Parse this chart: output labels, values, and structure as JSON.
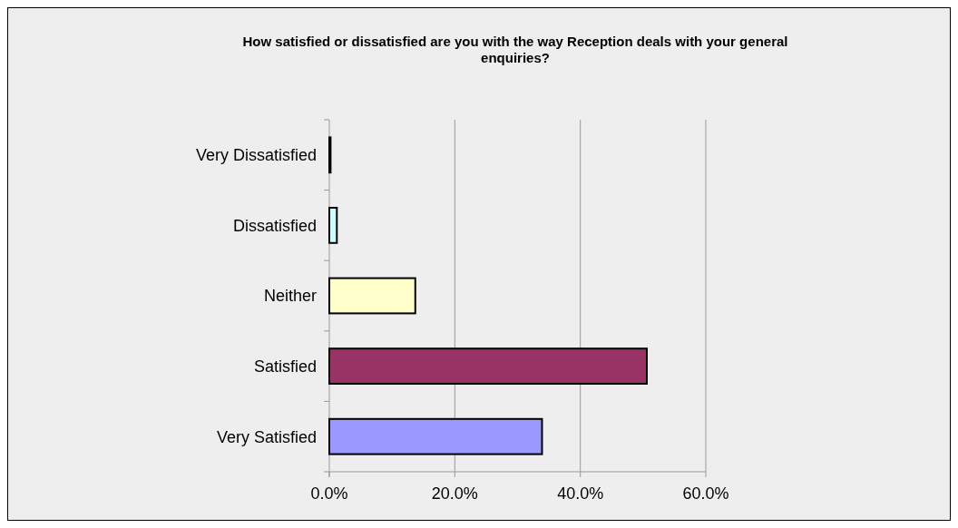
{
  "chart_data": {
    "type": "bar",
    "orientation": "horizontal",
    "title": "How satisfied or dissatisfied are you with the way Reception deals with your general enquiries?",
    "categories": [
      "Very Dissatisfied",
      "Dissatisfied",
      "Neither",
      "Satisfied",
      "Very Satisfied"
    ],
    "values": [
      0.2,
      1.2,
      13.7,
      50.6,
      33.9
    ],
    "colors": [
      "#333399",
      "#ccffff",
      "#ffffcc",
      "#993366",
      "#9999ff"
    ],
    "xlim": [
      0,
      60
    ],
    "xticks": [
      {
        "value": 0,
        "label": "0.0%"
      },
      {
        "value": 20,
        "label": "20.0%"
      },
      {
        "value": 40,
        "label": "40.0%"
      },
      {
        "value": 60,
        "label": "60.0%"
      }
    ],
    "grid": "x"
  }
}
